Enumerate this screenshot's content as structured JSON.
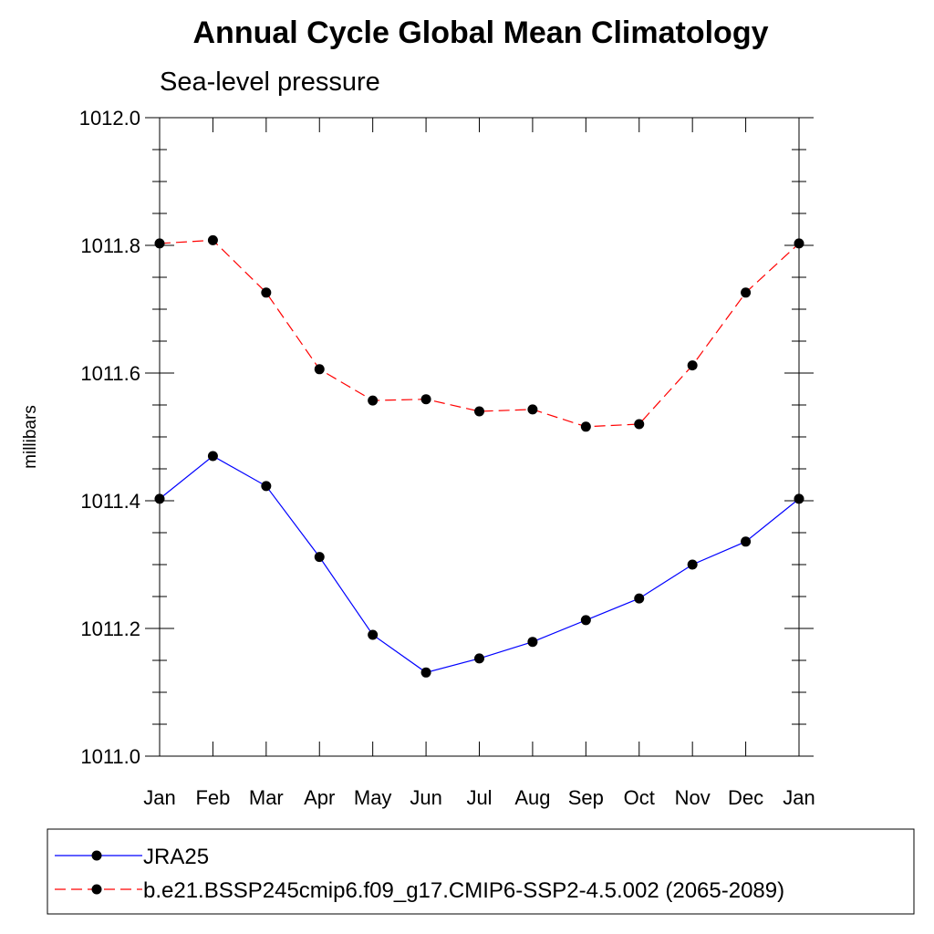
{
  "chart_data": {
    "type": "line",
    "title": "Annual Cycle Global Mean Climatology",
    "subtitle": "Sea-level pressure",
    "xlabel": "",
    "ylabel": "millibars",
    "categories": [
      "Jan",
      "Feb",
      "Mar",
      "Apr",
      "May",
      "Jun",
      "Jul",
      "Aug",
      "Sep",
      "Oct",
      "Nov",
      "Dec",
      "Jan"
    ],
    "ylim": [
      1011.0,
      1012.0
    ],
    "y_ticks": [
      "1011.0",
      "1011.2",
      "1011.4",
      "1011.6",
      "1011.8",
      "1012.0"
    ],
    "grid": false,
    "legend_position": "bottom",
    "series": [
      {
        "name": "JRA25",
        "color": "#0000ff",
        "line_style": "solid",
        "marker": "filled-circle",
        "values": [
          1011.403,
          1011.47,
          1011.423,
          1011.312,
          1011.19,
          1011.131,
          1011.153,
          1011.179,
          1011.213,
          1011.247,
          1011.3,
          1011.336,
          1011.403
        ]
      },
      {
        "name": "b.e21.BSSP245cmip6.f09_g17.CMIP6-SSP2-4.5.002 (2065-2089)",
        "color": "#ff0000",
        "line_style": "dashed",
        "marker": "filled-circle",
        "values": [
          1011.803,
          1011.808,
          1011.726,
          1011.606,
          1011.557,
          1011.559,
          1011.54,
          1011.543,
          1011.516,
          1011.52,
          1011.612,
          1011.726,
          1011.803
        ]
      }
    ]
  }
}
